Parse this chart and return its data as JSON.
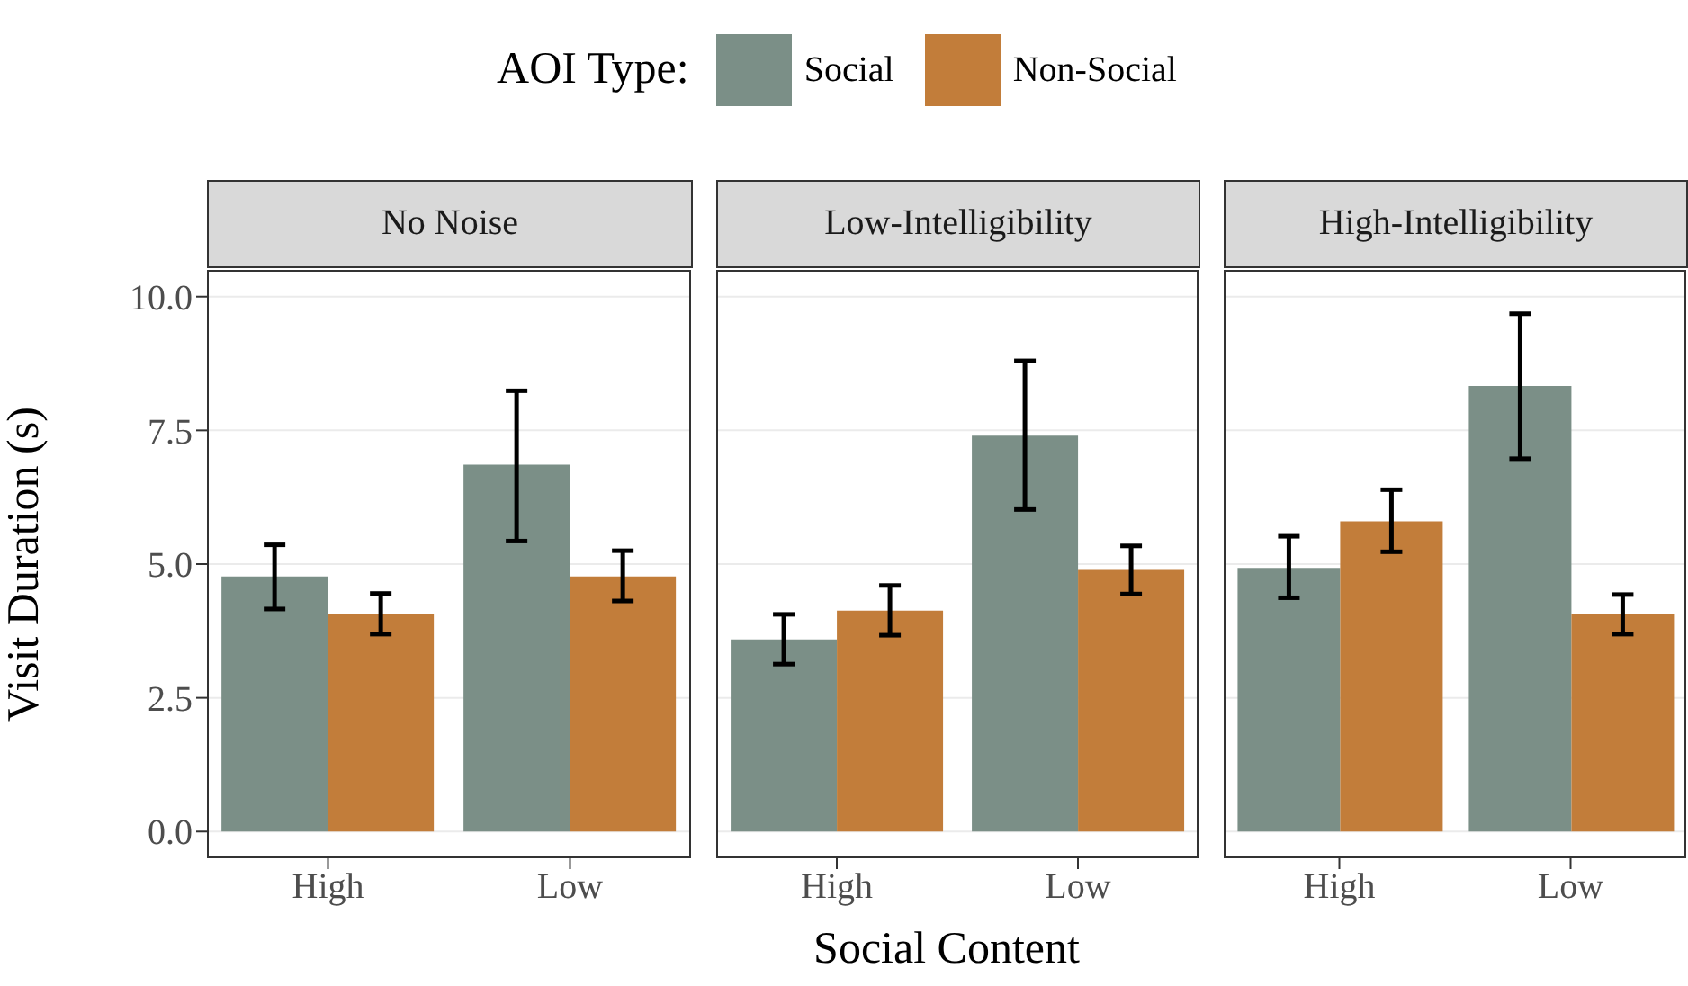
{
  "chart_data": [
    {
      "type": "bar",
      "title": "No Noise",
      "ylabel": "Visit Duration (s)",
      "legend_title": "AOI Type:",
      "legend": "top",
      "categories": [
        "High",
        "Low"
      ],
      "series": [
        {
          "name": "Social",
          "color": "#7b8f87",
          "values": [
            4.77,
            6.86
          ],
          "errors": [
            [
              4.16,
              5.36
            ],
            [
              5.43,
              8.24
            ]
          ]
        },
        {
          "name": "Non-Social",
          "color": "#c27d3a",
          "values": [
            4.06,
            4.77
          ],
          "errors": [
            [
              3.69,
              4.45
            ],
            [
              4.31,
              5.25
            ]
          ]
        }
      ],
      "ylim": [
        -0.5,
        10.5
      ],
      "yticks": [
        {
          "value": 0,
          "label": "0.0"
        },
        {
          "value": 2.5,
          "label": "2.5"
        },
        {
          "value": 5,
          "label": "5.0"
        },
        {
          "value": 7.5,
          "label": "7.5"
        },
        {
          "value": 10,
          "label": "10.0"
        }
      ],
      "grid": "y"
    },
    {
      "type": "bar",
      "title": "Low-Intelligibility",
      "xlabel": "Social Content",
      "categories": [
        "High",
        "Low"
      ],
      "series": [
        {
          "color": "#7b8f87",
          "values": [
            3.59,
            7.4
          ],
          "errors": [
            [
              3.13,
              4.06
            ],
            [
              6.02,
              8.8
            ]
          ]
        },
        {
          "color": "#c27d3a",
          "values": [
            4.13,
            4.89
          ],
          "errors": [
            [
              3.67,
              4.6
            ],
            [
              4.44,
              5.34
            ]
          ]
        }
      ],
      "ylim": [
        -0.5,
        10.5
      ],
      "yticks": [
        0,
        2.5,
        5,
        7.5,
        10
      ],
      "grid": "y",
      "tick_labels": "x"
    },
    {
      "type": "bar",
      "title": "High-Intelligibility",
      "categories": [
        "High",
        "Low"
      ],
      "series": [
        {
          "color": "#7b8f87",
          "values": [
            4.93,
            8.33
          ],
          "errors": [
            [
              4.37,
              5.52
            ],
            [
              6.97,
              9.68
            ]
          ]
        },
        {
          "color": "#c27d3a",
          "values": [
            5.8,
            4.06
          ],
          "errors": [
            [
              5.23,
              6.39
            ],
            [
              3.69,
              4.43
            ]
          ]
        }
      ],
      "ylim": [
        -0.5,
        10.5
      ],
      "yticks": [
        0,
        2.5,
        5,
        7.5,
        10
      ],
      "grid": "y",
      "tick_labels": "x"
    }
  ]
}
